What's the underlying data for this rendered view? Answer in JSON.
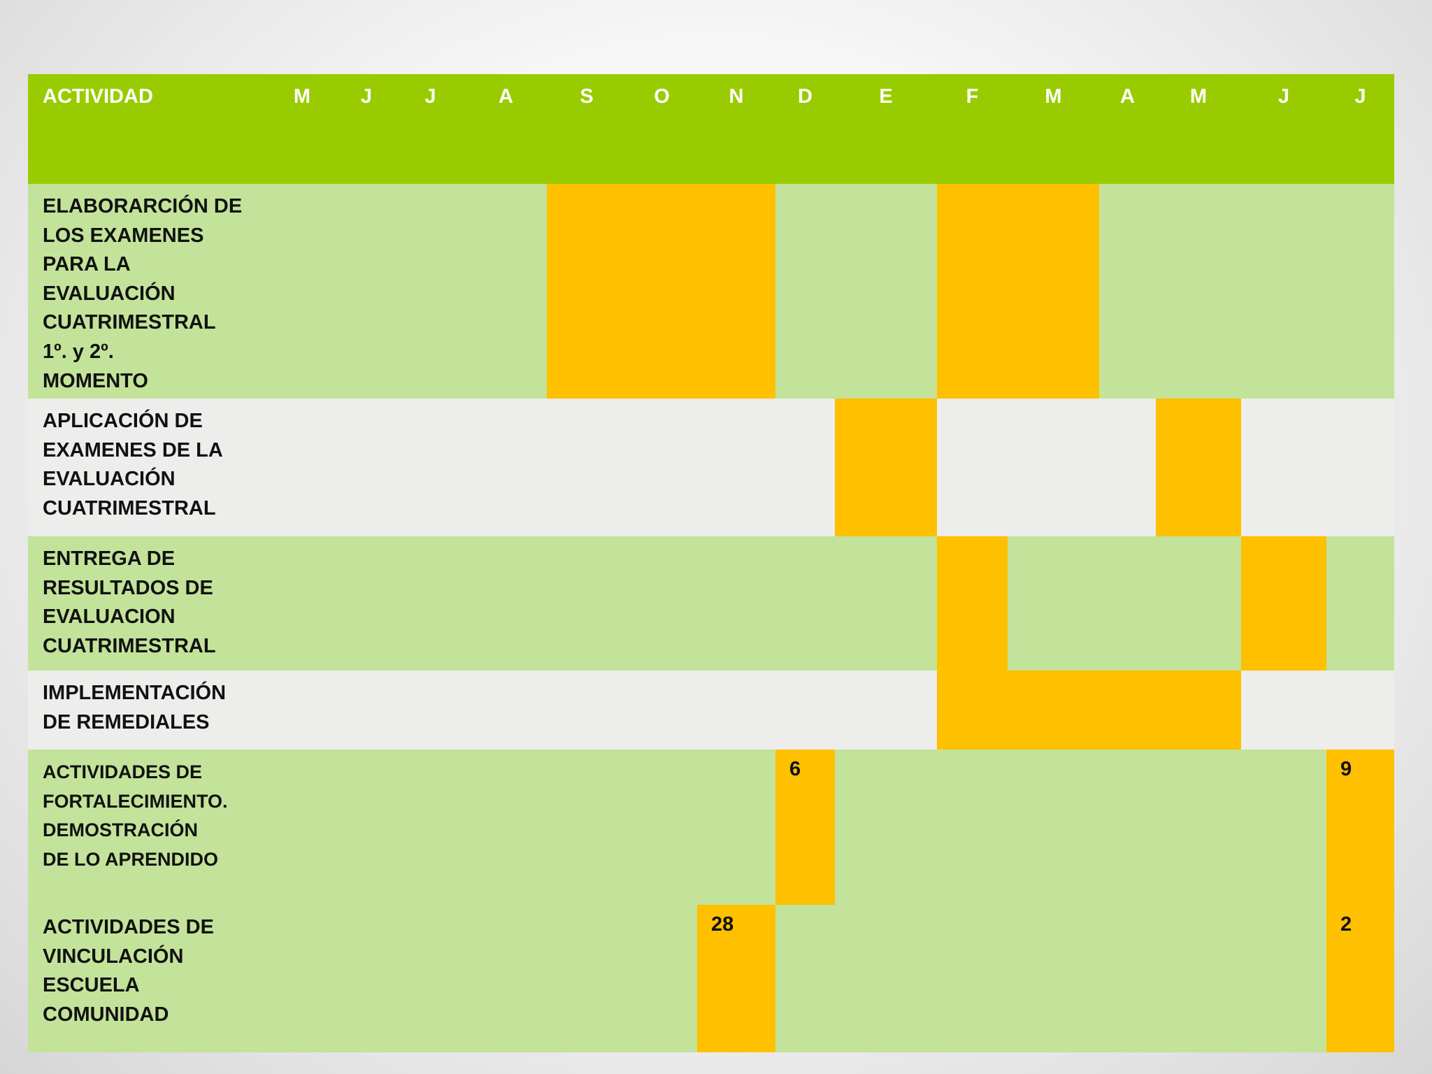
{
  "header": {
    "activity_label": "ACTIVIDAD",
    "months": [
      "M",
      "J",
      "J",
      "A",
      "S",
      "O",
      "N",
      "D",
      "E",
      "F",
      "M",
      "A",
      "M",
      "J",
      "J"
    ]
  },
  "colors": {
    "header_green": "#99cc00",
    "row_green": "#c3e39a",
    "row_light": "#ededeb",
    "highlight_orange": "#ffc000"
  },
  "activities": [
    {
      "label": "ELABORARCIÓN DE\nLOS EXAMENES\nPARA LA\nEVALUACIÓN\nCUATRIMESTRAL\n1º. y 2º.\nMOMENTO",
      "band": "green",
      "highlighted_months": [
        "S",
        "O",
        "N",
        "F",
        "M"
      ]
    },
    {
      "label": "APLICACIÓN DE\nEXAMENES DE LA\nEVALUACIÓN\nCUATRIMESTRAL",
      "band": "light",
      "highlighted_months": [
        "E (partial)",
        "M (May)"
      ]
    },
    {
      "label": "ENTREGA DE\nRESULTADOS  DE\nEVALUACION\nCUATRIMESTRAL",
      "band": "green",
      "highlighted_months": [
        "F (partial)",
        "J (June)"
      ]
    },
    {
      "label": "IMPLEMENTACIÓN\nDE REMEDIALES",
      "band": "light",
      "highlighted_months": [
        "F",
        "M",
        "A",
        "M (May)"
      ]
    },
    {
      "label": "ACTIVIDADES DE\nFORTALECIMIENTO.\nDEMOSTRACIÓN\nDE LO APRENDIDO",
      "band": "green",
      "highlighted_months": [
        "D",
        "J (July)"
      ],
      "marks": [
        "6",
        "9"
      ]
    },
    {
      "label": "ACTIVIDADES DE\nVINCULACIÓN\nESCUELA\nCOMUNIDAD",
      "band": "green",
      "highlighted_months": [
        "N",
        "J (July)"
      ],
      "marks": [
        "28",
        "2"
      ]
    }
  ]
}
